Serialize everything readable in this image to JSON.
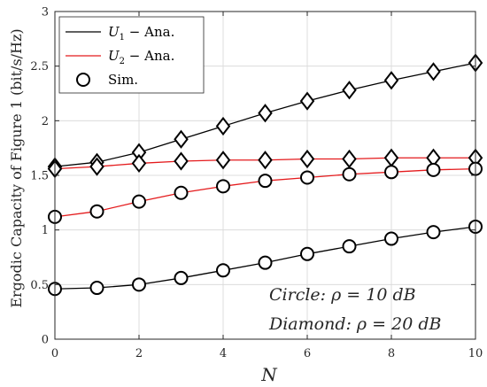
{
  "chart_data": {
    "type": "line",
    "xlabel": "N",
    "ylabel": "Ergodic Capacity of Figure 1 (bit/s/Hz)",
    "xlim": [
      0,
      10
    ],
    "ylim": [
      0,
      3
    ],
    "xticks": [
      "0",
      "2",
      "4",
      "6",
      "8",
      "10"
    ],
    "yticks": [
      "0",
      "0.5",
      "1",
      "1.5",
      "2",
      "2.5",
      "3"
    ],
    "grid": true,
    "legend_position": "top-left",
    "legend": [
      {
        "label": "U1 − Ana.",
        "main": "U",
        "sub": "1",
        "rest": " − Ana.",
        "color": "#000000",
        "style": "line"
      },
      {
        "label": "U2 − Ana.",
        "main": "U",
        "sub": "2",
        "rest": " − Ana.",
        "color": "#e41a1c",
        "style": "line"
      },
      {
        "label": "Sim.",
        "main": "Sim.",
        "sub": "",
        "rest": "",
        "color": "#000000",
        "style": "circle-marker"
      }
    ],
    "annotations": {
      "circle": "Circle: ρ = 10 dB",
      "diamond": "Diamond: ρ = 20 dB"
    },
    "x": [
      0,
      1,
      2,
      3,
      4,
      5,
      6,
      7,
      8,
      9,
      10
    ],
    "series": [
      {
        "user": "U1",
        "snr": "20 dB",
        "color": "#000000",
        "marker": "diamond",
        "values": [
          1.58,
          1.62,
          1.71,
          1.83,
          1.95,
          2.07,
          2.18,
          2.28,
          2.37,
          2.45,
          2.53
        ]
      },
      {
        "user": "U2",
        "snr": "20 dB",
        "color": "#e41a1c",
        "marker": "diamond",
        "values": [
          1.56,
          1.58,
          1.61,
          1.63,
          1.64,
          1.64,
          1.65,
          1.65,
          1.66,
          1.66,
          1.66
        ]
      },
      {
        "user": "U2",
        "snr": "10 dB",
        "color": "#e41a1c",
        "marker": "circle",
        "values": [
          1.12,
          1.17,
          1.26,
          1.34,
          1.4,
          1.45,
          1.48,
          1.51,
          1.53,
          1.55,
          1.56
        ]
      },
      {
        "user": "U1",
        "snr": "10 dB",
        "color": "#000000",
        "marker": "circle",
        "values": [
          0.46,
          0.47,
          0.5,
          0.56,
          0.63,
          0.7,
          0.78,
          0.85,
          0.92,
          0.98,
          1.03
        ]
      }
    ]
  }
}
